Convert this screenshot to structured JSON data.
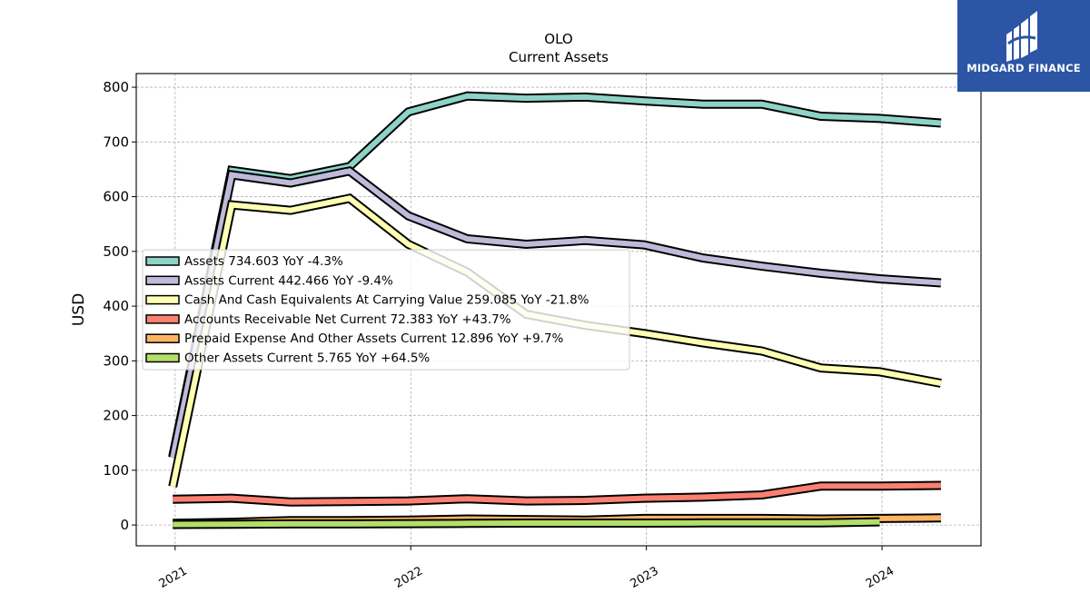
{
  "logo": {
    "text": "MIDGARD FINANCE"
  },
  "chart_data": {
    "type": "line",
    "title": "OLO",
    "subtitle": "Current  Assets",
    "ylabel": "USD",
    "xlabel": "",
    "ylim": [
      -38,
      825
    ],
    "xlim": [
      2020.835,
      2024.42
    ],
    "yticks": [
      0,
      100,
      200,
      300,
      400,
      500,
      600,
      700,
      800
    ],
    "xticks": [
      {
        "value": 2021,
        "label": "2021"
      },
      {
        "value": 2022,
        "label": "2022"
      },
      {
        "value": 2023,
        "label": "2023"
      },
      {
        "value": 2024,
        "label": "2024"
      }
    ],
    "grid": true,
    "legend_position": "center-left",
    "series": [
      {
        "name": "Assets",
        "legend": "Assets  734.603 YoY -4.3%",
        "color": "#8dd3c7",
        "x": [
          2020.99,
          2021.24,
          2021.49,
          2021.74,
          2021.99,
          2022.24,
          2022.49,
          2022.74,
          2022.99,
          2023.24,
          2023.49,
          2023.74,
          2023.99,
          2024.25
        ],
        "values": [
          125,
          648,
          633,
          655,
          755,
          784,
          780,
          782,
          775,
          769,
          769,
          747,
          743,
          734.603
        ]
      },
      {
        "name": "Assets Current",
        "legend": "Assets Current  442.466 YoY -9.4%",
        "color": "#bebada",
        "x": [
          2020.99,
          2021.24,
          2021.49,
          2021.74,
          2021.99,
          2022.24,
          2022.49,
          2022.74,
          2022.99,
          2023.24,
          2023.49,
          2023.74,
          2023.99,
          2024.25
        ],
        "values": [
          123,
          640,
          625,
          647,
          565,
          523,
          513,
          520,
          512,
          488,
          473,
          460,
          450,
          442.466
        ]
      },
      {
        "name": "Cash And Cash Equivalents At Carrying Value",
        "legend": "Cash And Cash Equivalents At Carrying Value  259.085 YoY -21.8%",
        "color": "#ffffb3",
        "x": [
          2020.99,
          2021.24,
          2021.49,
          2021.74,
          2021.99,
          2022.24,
          2022.49,
          2022.74,
          2022.99,
          2023.24,
          2023.49,
          2023.74,
          2023.99,
          2024.25
        ],
        "values": [
          70,
          585,
          575,
          597,
          513,
          462,
          385,
          365,
          350,
          333,
          318,
          287,
          280,
          259.085
        ]
      },
      {
        "name": "Accounts Receivable Net Current",
        "legend": "Accounts Receivable Net Current  72.383 YoY +43.7%",
        "color": "#fb8072",
        "x": [
          2020.99,
          2021.24,
          2021.49,
          2021.74,
          2021.99,
          2022.24,
          2022.49,
          2022.74,
          2022.99,
          2023.24,
          2023.49,
          2023.74,
          2023.99,
          2024.25
        ],
        "values": [
          47,
          49,
          42,
          43,
          44,
          48,
          44,
          45,
          49,
          51,
          55,
          71,
          71,
          72.383
        ]
      },
      {
        "name": "Prepaid Expense And Other Assets Current",
        "legend": "Prepaid Expense And Other Assets Current  12.896 YoY +9.7%",
        "color": "#fdb462",
        "x": [
          2020.99,
          2021.24,
          2021.49,
          2021.74,
          2021.99,
          2022.24,
          2022.49,
          2022.74,
          2022.99,
          2023.24,
          2023.49,
          2023.74,
          2023.99,
          2024.25
        ],
        "values": [
          3,
          5,
          8,
          8,
          9,
          11,
          10,
          9,
          12,
          12,
          12,
          11,
          12,
          12.896
        ]
      },
      {
        "name": "Other Assets Current",
        "legend": "Other Assets Current  5.765 YoY +64.5%",
        "color": "#b3de69",
        "x": [
          2020.99,
          2021.24,
          2021.49,
          2021.74,
          2021.99,
          2022.24,
          2022.49,
          2022.74,
          2022.99,
          2023.24,
          2023.49,
          2023.74,
          2023.99
        ],
        "values": [
          1,
          1.5,
          2,
          2,
          2.5,
          3,
          3.5,
          3.5,
          3.5,
          3.8,
          3.8,
          4,
          5.765
        ]
      }
    ]
  }
}
